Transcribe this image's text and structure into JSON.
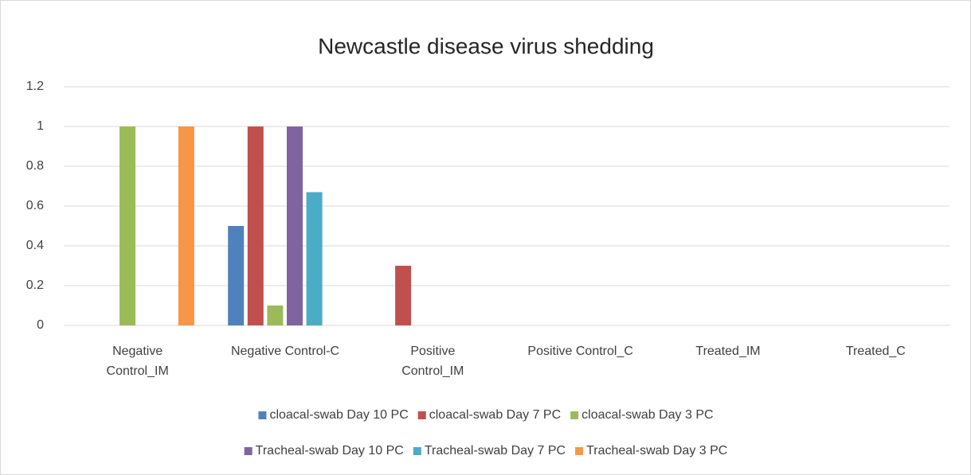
{
  "chart_data": {
    "type": "bar",
    "title": "Newcastle disease virus shedding",
    "categories": [
      "Negative Control_IM",
      "Negative Control-C",
      "Positive Control_IM",
      "Positive Control_C",
      "Treated_IM",
      "Treated_C"
    ],
    "series": [
      {
        "name": "cloacal-swab Day 10 PC",
        "color": "#4f81bd",
        "values": [
          0,
          0.5,
          0,
          0,
          0,
          0
        ]
      },
      {
        "name": "cloacal-swab Day 7 PC",
        "color": "#c0504d",
        "values": [
          0,
          1,
          0.3,
          0,
          0,
          0
        ]
      },
      {
        "name": "cloacal-swab Day 3 PC",
        "color": "#9bbb59",
        "values": [
          1,
          0.1,
          0,
          0,
          0,
          0
        ]
      },
      {
        "name": "Tracheal-swab Day 10 PC",
        "color": "#8064a2",
        "values": [
          0,
          1,
          0,
          0,
          0,
          0
        ]
      },
      {
        "name": "Tracheal-swab Day 7 PC",
        "color": "#4bacc6",
        "values": [
          0,
          0.67,
          0,
          0,
          0,
          0
        ]
      },
      {
        "name": "Tracheal-swab Day 3 PC",
        "color": "#f79646",
        "values": [
          1,
          0,
          0,
          0,
          0,
          0
        ]
      }
    ],
    "ylim": [
      0,
      1.2
    ],
    "yticks": [
      0,
      0.2,
      0.4,
      0.6,
      0.8,
      1,
      1.2
    ],
    "grid": true,
    "legend": "bottom"
  }
}
